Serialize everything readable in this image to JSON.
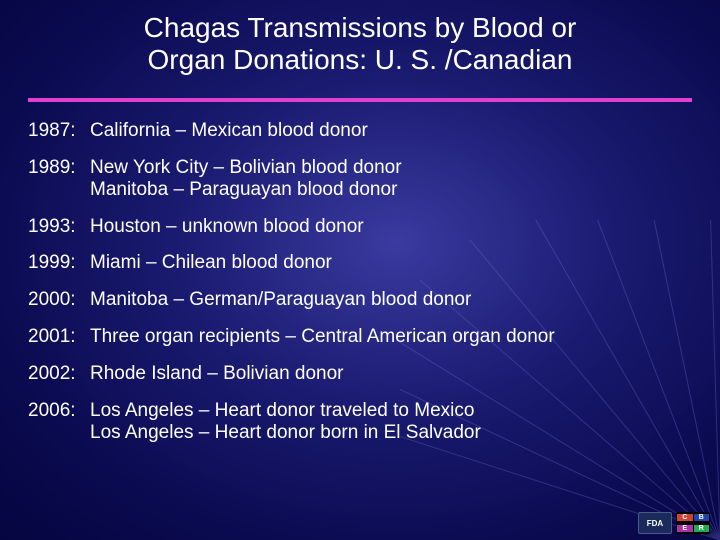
{
  "title_line1": "Chagas Transmissions by Blood or",
  "title_line2": "Organ Donations: U. S. /Canadian",
  "divider_color": "#e040d0",
  "text_color": "#ffffff",
  "title_fontsize": 28,
  "body_fontsize": 19,
  "background": {
    "center_color": "#3a3aa0",
    "mid_color": "#1a1a70",
    "edge_color": "#050540"
  },
  "entries": [
    {
      "year": "1987:",
      "lines": [
        "California – Mexican blood donor"
      ]
    },
    {
      "year": "1989:",
      "lines": [
        "New York City – Bolivian blood donor",
        "Manitoba – Paraguayan blood donor"
      ]
    },
    {
      "year": "1993:",
      "lines": [
        "Houston – unknown blood donor"
      ]
    },
    {
      "year": "1999:",
      "lines": [
        "Miami – Chilean blood donor"
      ]
    },
    {
      "year": "2000:",
      "lines": [
        "Manitoba – German/Paraguayan blood donor"
      ]
    },
    {
      "year": "2001:",
      "lines": [
        "Three organ recipients – Central American organ donor"
      ]
    },
    {
      "year": "2002:",
      "lines": [
        "Rhode Island – Bolivian donor"
      ]
    },
    {
      "year": "2006:",
      "lines": [
        "Los Angeles – Heart donor traveled to Mexico",
        "Los Angeles – Heart donor born in El Salvador"
      ]
    }
  ],
  "logos": {
    "fda": "FDA",
    "cber": [
      "C",
      "B",
      "E",
      "R"
    ]
  }
}
